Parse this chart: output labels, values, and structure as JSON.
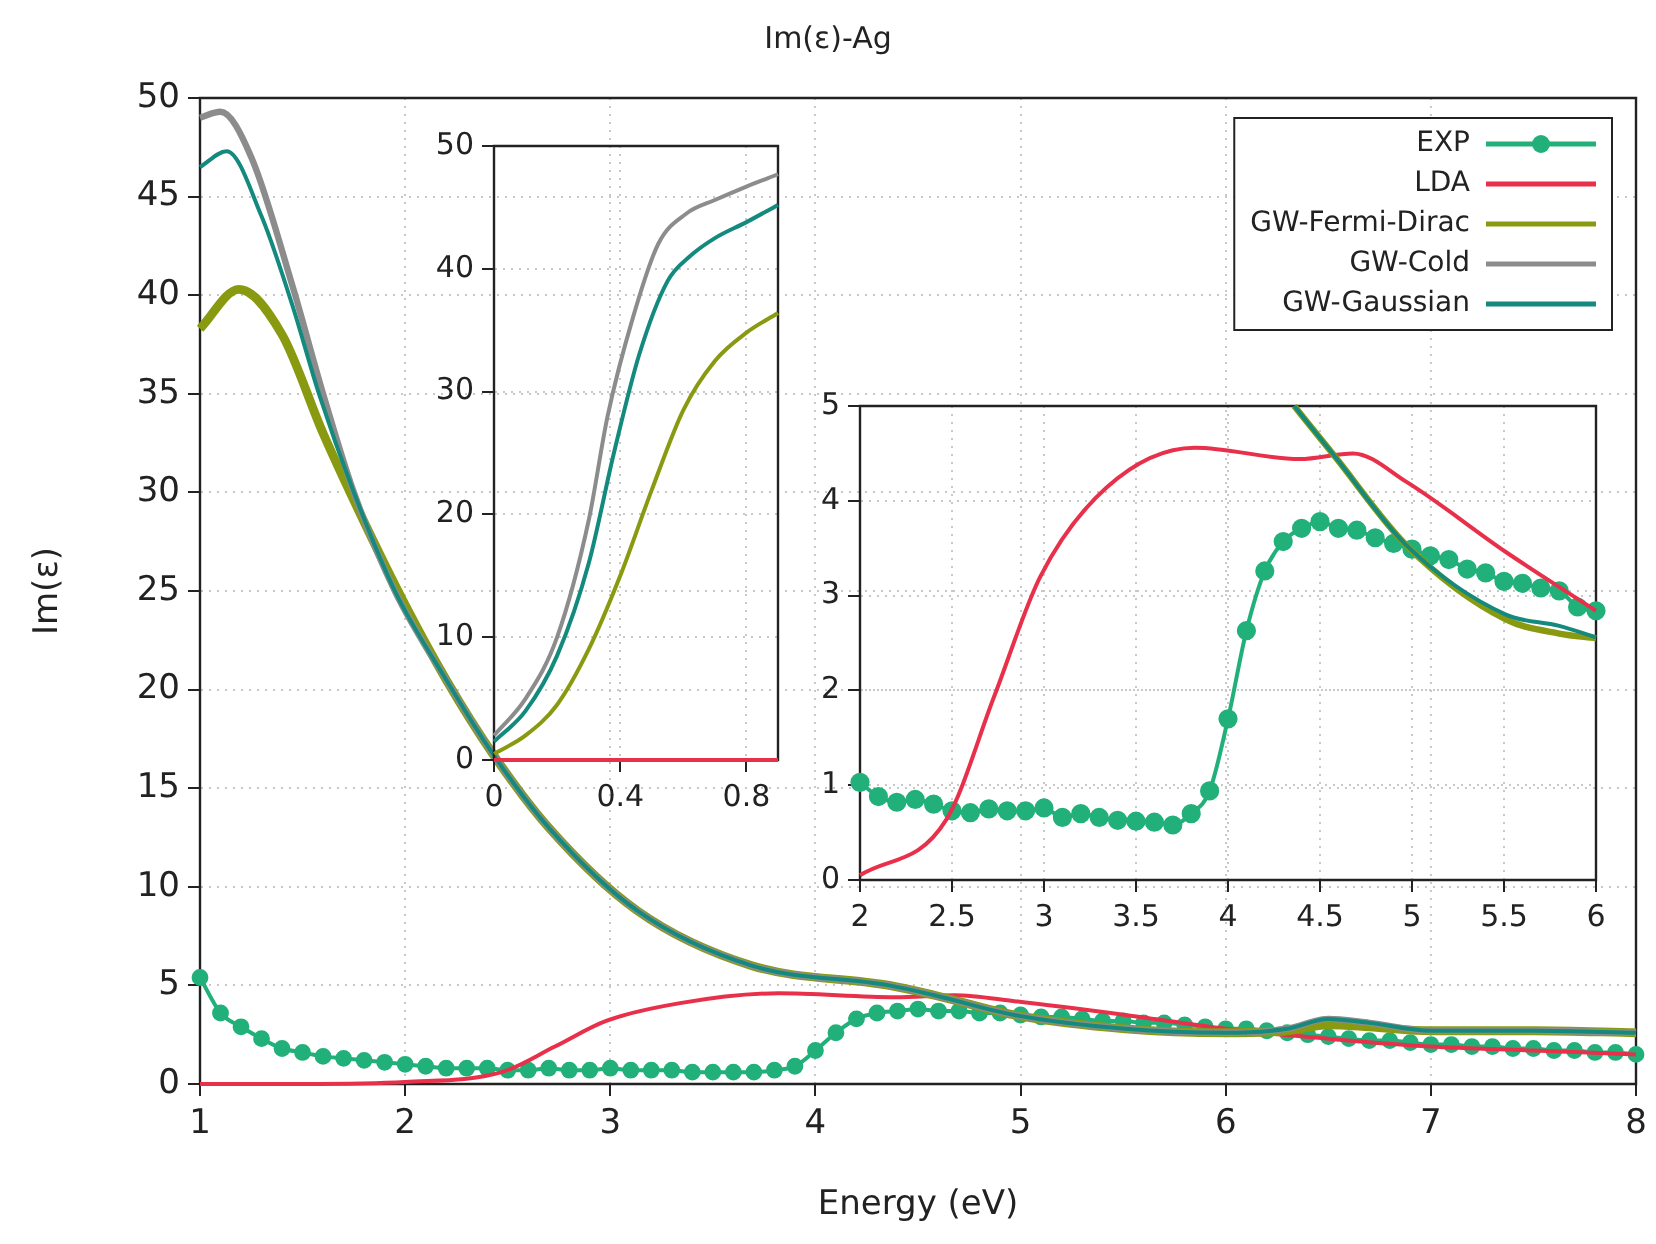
{
  "chart_data": [
    {
      "type": "line",
      "title": "Im(ε)-Ag",
      "xlabel": "Energy (eV)",
      "ylabel": "Im(ε)",
      "xlim": [
        1,
        8
      ],
      "xticks": [
        1,
        2,
        3,
        4,
        5,
        6,
        7,
        8
      ],
      "ylim": [
        0,
        50
      ],
      "yticks": [
        0,
        5,
        10,
        15,
        20,
        25,
        30,
        35,
        40,
        45,
        50
      ],
      "grid": true,
      "legend": "top right",
      "line_style": "solid",
      "series": [
        {
          "name": "EXP",
          "color": "#22b07a",
          "marker": "circle",
          "x": [
            1.0,
            1.1,
            1.2,
            1.3,
            1.4,
            1.5,
            1.6,
            1.7,
            1.8,
            1.9,
            2.0,
            2.1,
            2.2,
            2.3,
            2.4,
            2.5,
            2.6,
            2.7,
            2.8,
            2.9,
            3.0,
            3.1,
            3.2,
            3.3,
            3.4,
            3.5,
            3.6,
            3.7,
            3.8,
            3.9,
            4.0,
            4.1,
            4.2,
            4.3,
            4.4,
            4.5,
            4.6,
            4.7,
            4.8,
            4.9,
            5.0,
            5.1,
            5.2,
            5.3,
            5.4,
            5.5,
            5.6,
            5.7,
            5.8,
            5.9,
            6.0,
            6.1,
            6.2,
            6.3,
            6.4,
            6.5,
            6.6,
            6.7,
            6.8,
            6.9,
            7.0,
            7.1,
            7.2,
            7.3,
            7.4,
            7.5,
            7.6,
            7.7,
            7.8,
            7.9,
            8.0
          ],
          "values": [
            5.4,
            3.6,
            2.9,
            2.3,
            1.8,
            1.6,
            1.4,
            1.3,
            1.2,
            1.1,
            1.0,
            0.9,
            0.8,
            0.8,
            0.8,
            0.7,
            0.7,
            0.8,
            0.7,
            0.7,
            0.8,
            0.7,
            0.7,
            0.7,
            0.6,
            0.6,
            0.6,
            0.6,
            0.7,
            0.9,
            1.7,
            2.6,
            3.3,
            3.6,
            3.7,
            3.8,
            3.7,
            3.7,
            3.6,
            3.6,
            3.5,
            3.4,
            3.4,
            3.3,
            3.2,
            3.2,
            3.1,
            3.1,
            3.0,
            2.9,
            2.8,
            2.8,
            2.7,
            2.6,
            2.5,
            2.4,
            2.3,
            2.2,
            2.2,
            2.1,
            2.0,
            2.0,
            1.9,
            1.9,
            1.8,
            1.8,
            1.7,
            1.7,
            1.6,
            1.6,
            1.5
          ]
        },
        {
          "name": "LDA",
          "color": "#e8304a",
          "marker": "none",
          "x": [
            1,
            1.5,
            2,
            2.47,
            2.73,
            2.98,
            3.34,
            3.82,
            4.39,
            4.68,
            4.97,
            5.51,
            6,
            6.5,
            7,
            7.5,
            8
          ],
          "values": [
            0,
            0,
            0.1,
            0.6,
            1.9,
            3.2,
            4.1,
            4.6,
            4.4,
            4.5,
            4.2,
            3.5,
            2.8,
            2.3,
            1.9,
            1.7,
            1.5
          ]
        },
        {
          "name": "GW-Fermi-Dirac",
          "color": "#8a9a10",
          "marker": "none",
          "x": [
            1,
            1.19,
            1.4,
            1.6,
            1.8,
            2.0,
            2.2,
            2.43,
            2.7,
            3.13,
            3.69,
            4.36,
            4.58,
            4.97,
            5.51,
            6,
            6.3,
            6.5,
            6.7,
            7,
            7.5,
            8
          ],
          "values": [
            38.3,
            40.3,
            38,
            33,
            28.5,
            24.3,
            20.5,
            16.7,
            13,
            8.8,
            6,
            5,
            4.5,
            3.5,
            2.8,
            2.6,
            2.7,
            3.0,
            2.9,
            2.7,
            2.7,
            2.6
          ]
        },
        {
          "name": "GW-Cold",
          "color": "#8c8c8c",
          "marker": "none",
          "x": [
            1,
            1.1,
            1.25,
            1.45,
            1.6,
            1.75,
            1.95,
            2.2,
            2.43,
            2.7,
            3.13,
            3.69,
            4.36,
            4.58,
            4.97,
            5.51,
            6,
            6.3,
            6.5,
            6.7,
            7,
            7.5,
            8
          ],
          "values": [
            49,
            49.3,
            47,
            40.5,
            35,
            30,
            25,
            20.5,
            16.7,
            13,
            8.8,
            6,
            5,
            4.5,
            3.5,
            2.8,
            2.6,
            2.8,
            3.3,
            3.1,
            2.7,
            2.7,
            2.6
          ]
        },
        {
          "name": "GW-Gaussian",
          "color": "#138a7d",
          "marker": "none",
          "x": [
            1,
            1.13,
            1.3,
            1.45,
            1.58,
            1.75,
            1.95,
            2.2,
            2.43,
            2.7,
            3.13,
            3.69,
            4.36,
            4.58,
            4.97,
            5.51,
            6,
            6.3,
            6.5,
            6.7,
            7,
            7.5,
            8
          ],
          "values": [
            46.5,
            47.3,
            44,
            39.5,
            35,
            30,
            25,
            20.5,
            16.7,
            13,
            8.8,
            6,
            5,
            4.5,
            3.5,
            2.8,
            2.6,
            2.8,
            3.3,
            3.1,
            2.7,
            2.7,
            2.6
          ]
        }
      ]
    },
    {
      "type": "line",
      "xlim": [
        0,
        0.9
      ],
      "xticks": [
        0,
        0.4,
        0.8
      ],
      "ylim": [
        0,
        50
      ],
      "yticks": [
        0,
        10,
        20,
        30,
        40,
        50
      ],
      "grid": true,
      "line_style": "solid",
      "series": [
        {
          "color": "#e8304a",
          "marker": "none",
          "x": [
            0,
            0.9
          ],
          "values": [
            0,
            0
          ]
        },
        {
          "color": "#8a9a10",
          "marker": "none",
          "x": [
            0,
            0.1,
            0.2,
            0.3,
            0.4,
            0.5,
            0.6,
            0.7,
            0.8,
            0.9
          ],
          "values": [
            0.5,
            2,
            4.5,
            9,
            15,
            22,
            28.5,
            32.5,
            34.8,
            36.4
          ]
        },
        {
          "color": "#8c8c8c",
          "marker": "none",
          "x": [
            0,
            0.1,
            0.2,
            0.3,
            0.36,
            0.44,
            0.52,
            0.61,
            0.7,
            0.8,
            0.9
          ],
          "values": [
            2,
            5,
            10,
            19.5,
            28,
            36,
            42,
            44.5,
            45.6,
            46.7,
            47.7
          ]
        },
        {
          "color": "#138a7d",
          "marker": "none",
          "x": [
            0,
            0.1,
            0.2,
            0.3,
            0.38,
            0.46,
            0.55,
            0.62,
            0.7,
            0.8,
            0.9
          ],
          "values": [
            1.5,
            4,
            8.5,
            16,
            25,
            33,
            39,
            41,
            42.5,
            43.8,
            45.2
          ]
        }
      ]
    },
    {
      "type": "line",
      "xlim": [
        2,
        6
      ],
      "xticks": [
        2,
        2.5,
        3,
        3.5,
        4,
        4.5,
        5,
        5.5,
        6
      ],
      "ylim": [
        0,
        5
      ],
      "yticks": [
        0,
        1,
        2,
        3,
        4,
        5
      ],
      "grid": true,
      "line_style": "solid",
      "series": [
        {
          "color": "#22b07a",
          "marker": "circle",
          "x": [
            2.0,
            2.1,
            2.2,
            2.3,
            2.4,
            2.5,
            2.6,
            2.7,
            2.8,
            2.9,
            3.0,
            3.1,
            3.2,
            3.3,
            3.4,
            3.5,
            3.6,
            3.7,
            3.8,
            3.9,
            4.0,
            4.1,
            4.2,
            4.3,
            4.4,
            4.5,
            4.6,
            4.7,
            4.8,
            4.9,
            5.0,
            5.1,
            5.2,
            5.3,
            5.4,
            5.5,
            5.6,
            5.7,
            5.8,
            5.9,
            6.0
          ],
          "values": [
            1.03,
            0.88,
            0.82,
            0.85,
            0.8,
            0.73,
            0.71,
            0.75,
            0.73,
            0.73,
            0.76,
            0.66,
            0.7,
            0.66,
            0.63,
            0.62,
            0.61,
            0.58,
            0.7,
            0.94,
            1.7,
            2.63,
            3.26,
            3.57,
            3.71,
            3.78,
            3.71,
            3.69,
            3.61,
            3.55,
            3.49,
            3.42,
            3.38,
            3.28,
            3.24,
            3.15,
            3.13,
            3.08,
            3.05,
            2.88,
            2.84
          ]
        },
        {
          "color": "#e8304a",
          "marker": "none",
          "x": [
            2,
            2.47,
            2.73,
            2.98,
            3.34,
            3.82,
            4.39,
            4.68,
            4.97,
            5.51,
            6
          ],
          "values": [
            0.05,
            0.64,
            1.94,
            3.2,
            4.14,
            4.56,
            4.44,
            4.5,
            4.2,
            3.46,
            2.84
          ]
        },
        {
          "color": "#8a9a10",
          "marker": "none",
          "x": [
            4.36,
            4.58,
            4.97,
            5.51,
            5.8,
            6
          ],
          "values": [
            5,
            4.47,
            3.53,
            2.75,
            2.6,
            2.55
          ]
        },
        {
          "color": "#138a7d",
          "marker": "none",
          "x": [
            4.36,
            4.58,
            4.97,
            5.51,
            5.8,
            6
          ],
          "values": [
            5,
            4.47,
            3.53,
            2.8,
            2.68,
            2.56
          ]
        }
      ]
    }
  ]
}
